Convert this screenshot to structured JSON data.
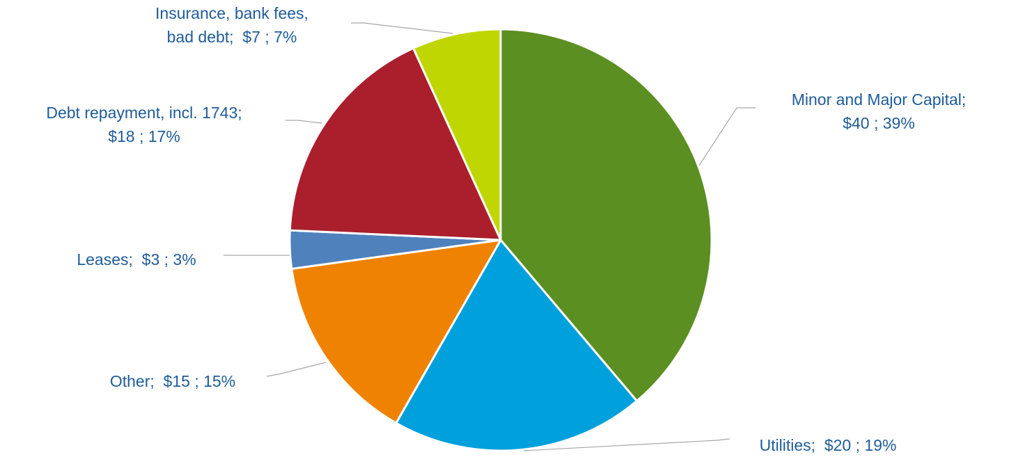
{
  "chart_data": {
    "type": "pie",
    "title": "",
    "slices": [
      {
        "category": "Minor and Major Capital",
        "value": 40,
        "percent": 39,
        "color": "#5b8f22",
        "label_lines": [
          "Minor and Major Capital;",
          "$40 ; 39%"
        ]
      },
      {
        "category": "Utilities",
        "value": 20,
        "percent": 19,
        "color": "#00a0dc",
        "label_lines": [
          "Utilities;  $20 ; 19%"
        ]
      },
      {
        "category": "Other",
        "value": 15,
        "percent": 15,
        "color": "#ef8200",
        "label_lines": [
          "Other;  $15 ; 15%"
        ]
      },
      {
        "category": "Leases",
        "value": 3,
        "percent": 3,
        "color": "#4f81bd",
        "label_lines": [
          "Leases;  $3 ; 3%"
        ]
      },
      {
        "category": "Debt repayment, incl. 1743",
        "value": 18,
        "percent": 17,
        "color": "#ab1f2d",
        "label_lines": [
          "Debt repayment, incl. 1743;",
          "$18 ; 17%"
        ]
      },
      {
        "category": "Insurance, bank fees, bad debt",
        "value": 7,
        "percent": 7,
        "color": "#bfd600",
        "label_lines": [
          "Insurance, bank fees,",
          "bad debt;  $7 ; 7%"
        ]
      }
    ],
    "start": "12 o'clock",
    "direction": "clockwise",
    "legend": "none"
  }
}
